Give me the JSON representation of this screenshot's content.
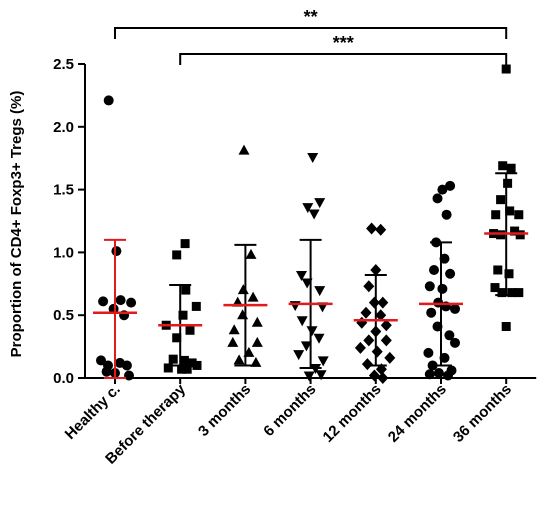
{
  "chart_data": {
    "type": "scatter",
    "title": "",
    "xlabel": "",
    "ylabel": "Proportion of CD4+ Foxp3+ Tregs (%)",
    "ylim": [
      0,
      2.5
    ],
    "yticks": [
      "0.0",
      "0.5",
      "1.0",
      "1.5",
      "2.0",
      "2.5"
    ],
    "grid": false,
    "legend": "none",
    "colors": {
      "points": "#000000",
      "mean_line": "#e31a1c",
      "error_bar_healthy": "#e31a1c",
      "error_bar_other": "#000000"
    },
    "categories": [
      "Healthy c.",
      "Before therapy",
      "3 months",
      "6 months",
      "12 months",
      "24 months",
      "36 months"
    ],
    "series": [
      {
        "category": "Healthy c.",
        "marker": "circle",
        "mean": 0.52,
        "sd_low": 0.0,
        "sd_high": 1.1,
        "points": [
          [
            -0.09,
            2.21
          ],
          [
            0.02,
            1.01
          ],
          [
            -0.17,
            0.61
          ],
          [
            0.08,
            0.62
          ],
          [
            0.23,
            0.6
          ],
          [
            -0.02,
            0.55
          ],
          [
            0.13,
            0.5
          ],
          [
            -0.2,
            0.14
          ],
          [
            -0.1,
            0.1
          ],
          [
            0.07,
            0.12
          ],
          [
            0.17,
            0.1
          ],
          [
            -0.12,
            0.05
          ],
          [
            0.0,
            0.04
          ],
          [
            0.2,
            0.02
          ]
        ]
      },
      {
        "category": "Before therapy",
        "marker": "square",
        "mean": 0.42,
        "sd_low": 0.1,
        "sd_high": 0.74,
        "points": [
          [
            0.07,
            1.07
          ],
          [
            -0.05,
            0.98
          ],
          [
            0.08,
            0.7
          ],
          [
            0.23,
            0.57
          ],
          [
            0.04,
            0.5
          ],
          [
            -0.2,
            0.42
          ],
          [
            -0.05,
            0.32
          ],
          [
            0.14,
            0.38
          ],
          [
            -0.1,
            0.15
          ],
          [
            0.06,
            0.14
          ],
          [
            0.17,
            0.12
          ],
          [
            -0.17,
            0.08
          ],
          [
            0.02,
            0.07
          ],
          [
            0.1,
            0.07
          ],
          [
            0.24,
            0.1
          ]
        ]
      },
      {
        "category": "3 months",
        "marker": "triangle-up",
        "mean": 0.58,
        "sd_low": 0.1,
        "sd_high": 1.06,
        "points": [
          [
            -0.02,
            1.81
          ],
          [
            0.08,
            0.98
          ],
          [
            -0.03,
            0.7
          ],
          [
            -0.11,
            0.6
          ],
          [
            0.11,
            0.64
          ],
          [
            -0.04,
            0.5
          ],
          [
            -0.16,
            0.38
          ],
          [
            0.17,
            0.44
          ],
          [
            -0.18,
            0.28
          ],
          [
            0.17,
            0.28
          ],
          [
            0.05,
            0.2
          ],
          [
            -0.09,
            0.14
          ],
          [
            0.15,
            0.12
          ]
        ]
      },
      {
        "category": "6 months",
        "marker": "triangle-down",
        "mean": 0.59,
        "sd_low": 0.08,
        "sd_high": 1.1,
        "points": [
          [
            0.03,
            1.76
          ],
          [
            0.13,
            1.4
          ],
          [
            -0.04,
            1.36
          ],
          [
            0.05,
            1.31
          ],
          [
            -0.13,
            0.82
          ],
          [
            -0.05,
            0.76
          ],
          [
            0.13,
            0.7
          ],
          [
            -0.22,
            0.58
          ],
          [
            0.17,
            0.57
          ],
          [
            -0.12,
            0.46
          ],
          [
            0.02,
            0.38
          ],
          [
            0.12,
            0.32
          ],
          [
            -0.06,
            0.26
          ],
          [
            -0.17,
            0.19
          ],
          [
            0.18,
            0.14
          ],
          [
            0.07,
            0.08
          ],
          [
            0.15,
            0.03
          ],
          [
            -0.02,
            0.02
          ]
        ]
      },
      {
        "category": "12 months",
        "marker": "diamond",
        "mean": 0.46,
        "sd_low": 0.1,
        "sd_high": 0.82,
        "points": [
          [
            -0.06,
            1.19
          ],
          [
            0.07,
            1.18
          ],
          [
            0.0,
            0.86
          ],
          [
            -0.1,
            0.73
          ],
          [
            0.1,
            0.6
          ],
          [
            -0.02,
            0.6
          ],
          [
            -0.14,
            0.52
          ],
          [
            0.07,
            0.5
          ],
          [
            0.15,
            0.42
          ],
          [
            -0.2,
            0.44
          ],
          [
            0.0,
            0.37
          ],
          [
            -0.1,
            0.3
          ],
          [
            0.15,
            0.3
          ],
          [
            -0.22,
            0.24
          ],
          [
            0.02,
            0.21
          ],
          [
            0.2,
            0.16
          ],
          [
            -0.12,
            0.11
          ],
          [
            0.08,
            0.07
          ],
          [
            -0.02,
            0.02
          ],
          [
            0.1,
            0.0
          ]
        ]
      },
      {
        "category": "24 months",
        "marker": "circle",
        "mean": 0.59,
        "sd_low": 0.1,
        "sd_high": 1.08,
        "points": [
          [
            0.13,
            1.53
          ],
          [
            0.02,
            1.5
          ],
          [
            -0.05,
            1.43
          ],
          [
            0.08,
            1.3
          ],
          [
            -0.07,
            1.08
          ],
          [
            0.05,
            0.95
          ],
          [
            -0.1,
            0.86
          ],
          [
            0.13,
            0.83
          ],
          [
            -0.16,
            0.73
          ],
          [
            0.02,
            0.71
          ],
          [
            -0.04,
            0.6
          ],
          [
            0.2,
            0.55
          ],
          [
            0.07,
            0.57
          ],
          [
            -0.14,
            0.52
          ],
          [
            -0.05,
            0.41
          ],
          [
            0.12,
            0.34
          ],
          [
            -0.18,
            0.2
          ],
          [
            0.2,
            0.28
          ],
          [
            0.05,
            0.16
          ],
          [
            -0.12,
            0.1
          ],
          [
            0.15,
            0.06
          ],
          [
            -0.03,
            0.04
          ],
          [
            0.1,
            0.02
          ],
          [
            -0.16,
            0.03
          ]
        ]
      },
      {
        "category": "36 months",
        "marker": "square",
        "mean": 1.15,
        "sd_low": 0.66,
        "sd_high": 1.63,
        "points": [
          [
            0.0,
            2.46
          ],
          [
            -0.05,
            1.69
          ],
          [
            0.07,
            1.67
          ],
          [
            0.02,
            1.55
          ],
          [
            -0.08,
            1.42
          ],
          [
            -0.15,
            1.3
          ],
          [
            0.05,
            1.33
          ],
          [
            0.18,
            1.3
          ],
          [
            -0.18,
            1.15
          ],
          [
            -0.08,
            1.14
          ],
          [
            0.12,
            1.17
          ],
          [
            0.2,
            1.14
          ],
          [
            -0.12,
            0.86
          ],
          [
            0.04,
            0.83
          ],
          [
            -0.16,
            0.72
          ],
          [
            -0.06,
            0.68
          ],
          [
            0.08,
            0.68
          ],
          [
            0.18,
            0.68
          ],
          [
            0.0,
            0.41
          ]
        ]
      }
    ],
    "annotations": [
      {
        "text": "**",
        "from": "Healthy c.",
        "to": "36 months",
        "level": 1
      },
      {
        "text": "***",
        "from": "Before therapy",
        "to": "36 months",
        "level": 2
      }
    ]
  }
}
